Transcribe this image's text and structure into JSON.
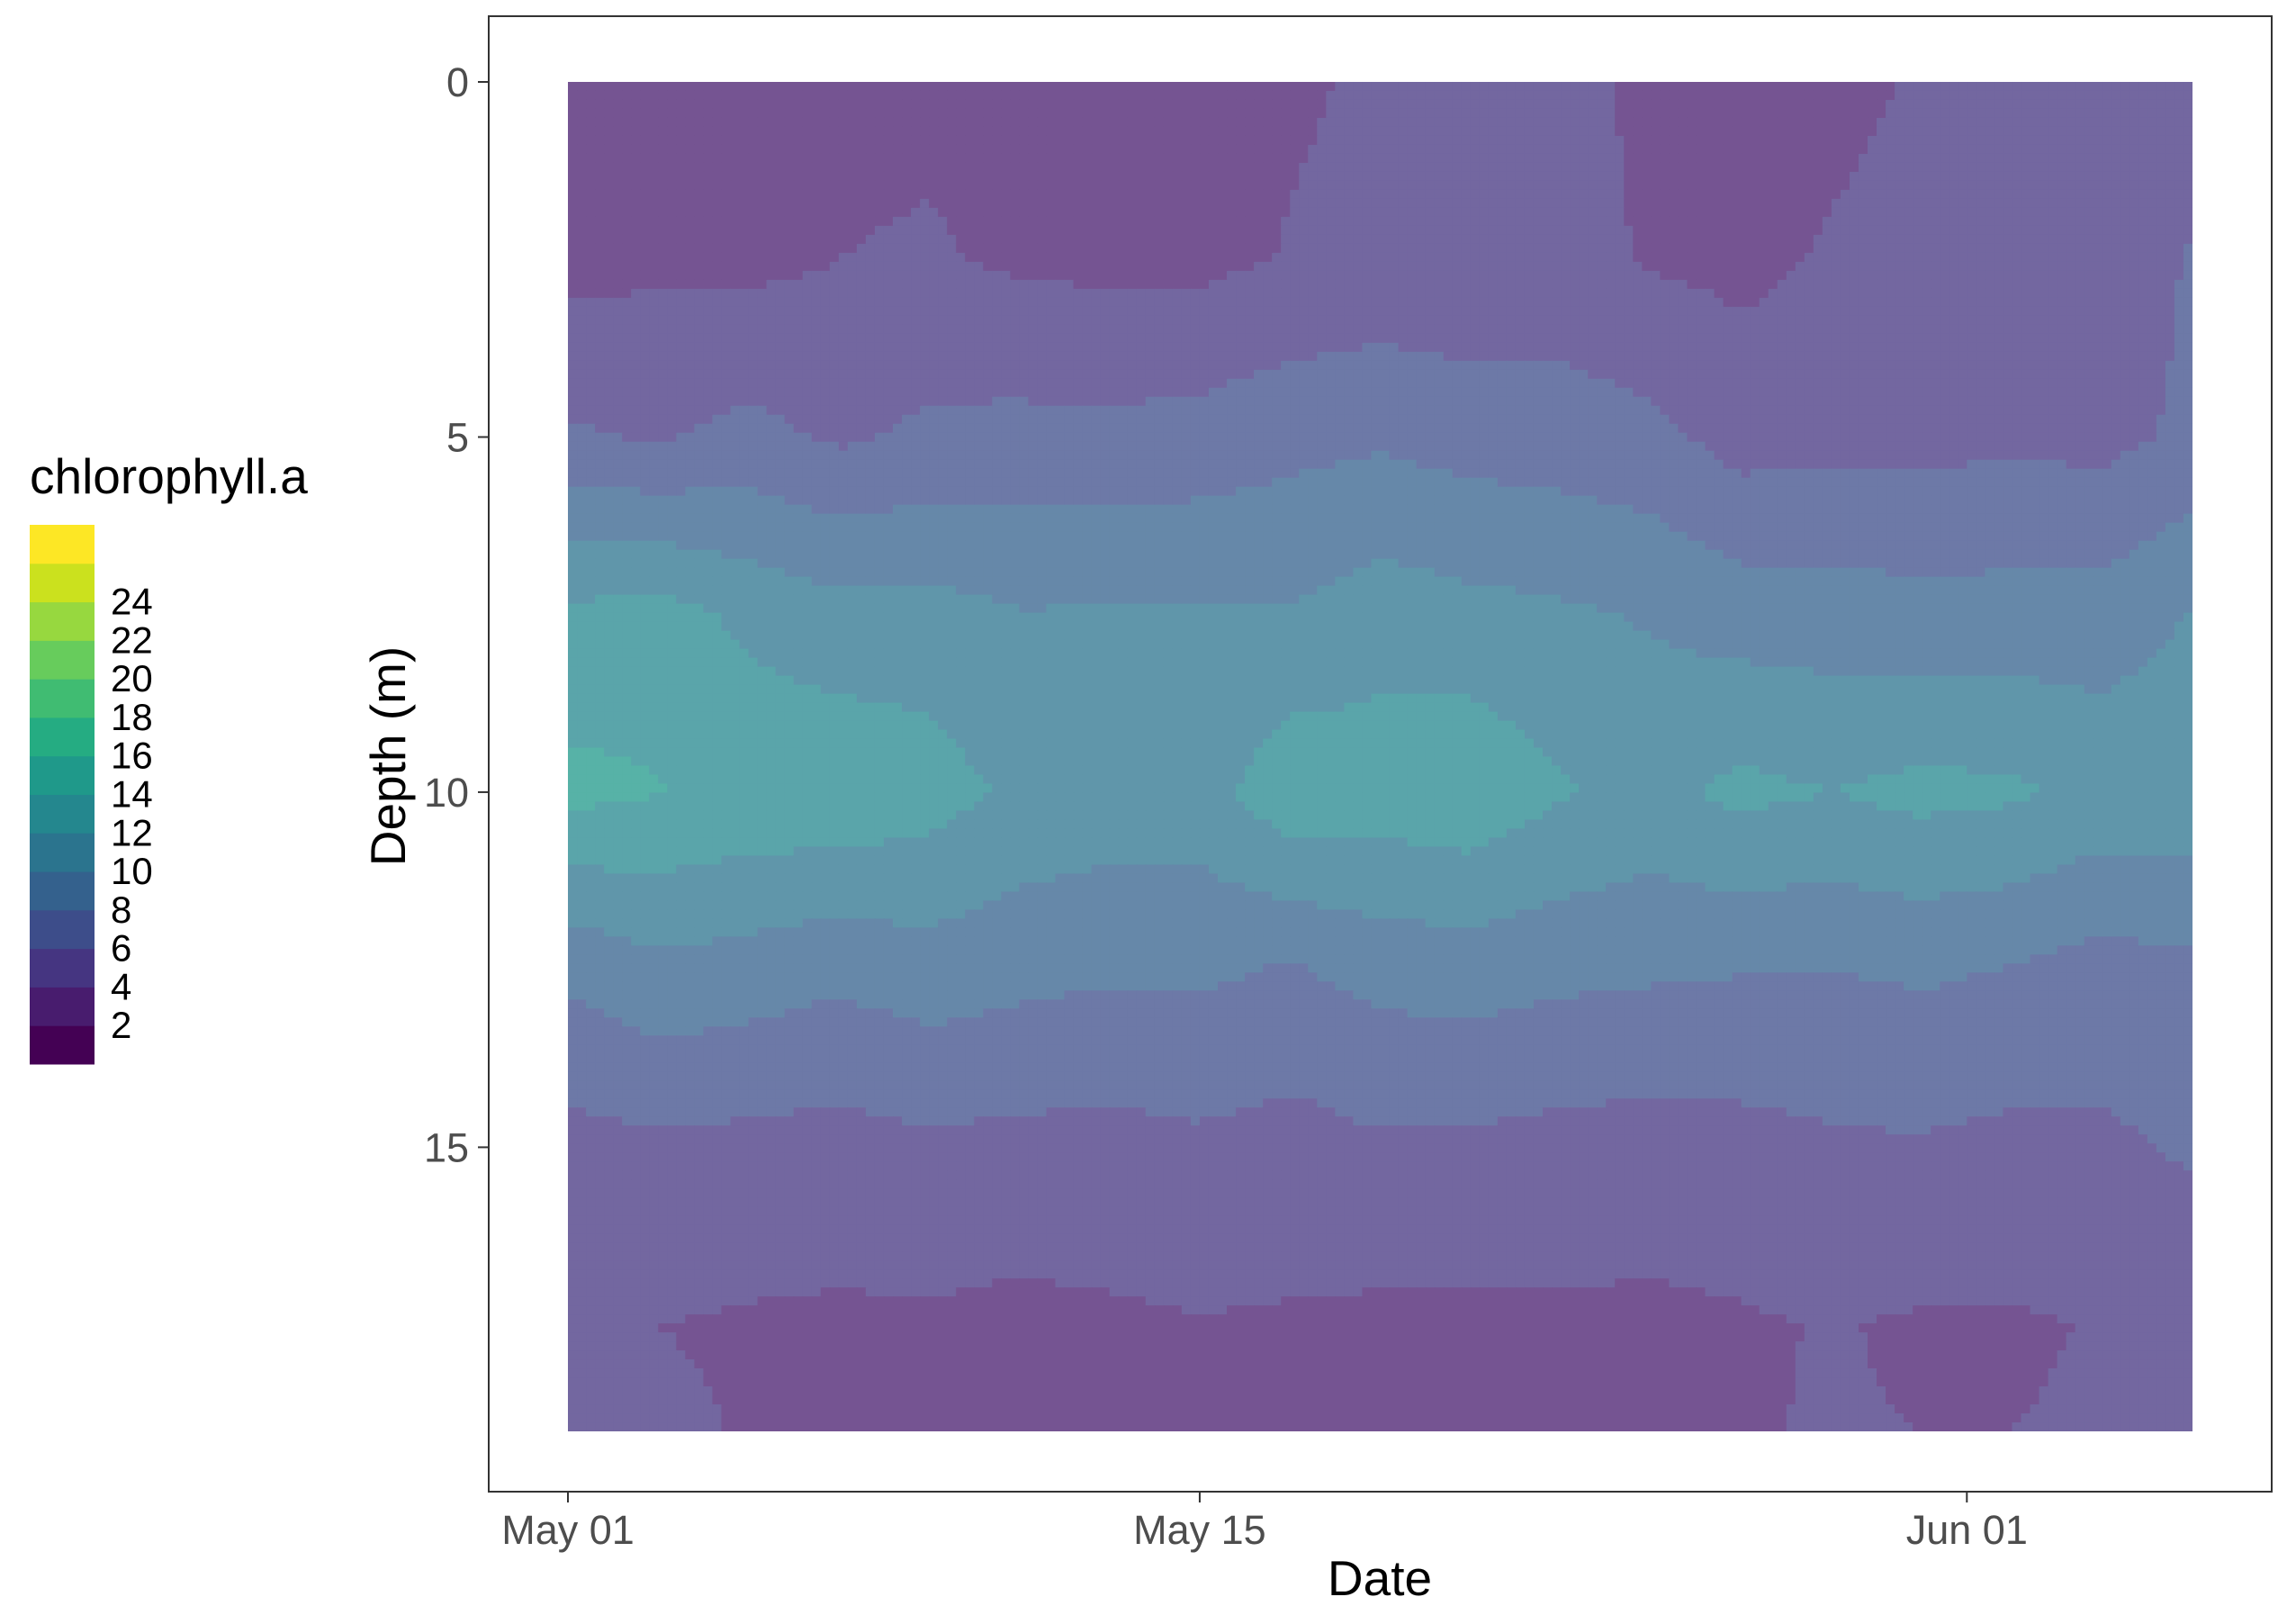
{
  "chart_data": {
    "type": "heatmap",
    "subtype": "filled-contour",
    "xlabel": "Date",
    "ylabel": "Depth (m)",
    "x_ticks": [
      "May 01",
      "May 15",
      "Jun 01"
    ],
    "x_ticks_day": [
      0,
      14,
      31
    ],
    "y_ticks": [
      "0",
      "5",
      "10",
      "15"
    ],
    "y_ticks_value": [
      0,
      5,
      10,
      15
    ],
    "xlim_dates": [
      "Apr 25",
      "Jun 01"
    ],
    "ylim": [
      19,
      0
    ],
    "y_reversed": true,
    "legend": {
      "title": "chlorophyll.a",
      "placement": "left",
      "labels": [
        "24",
        "22",
        "20",
        "18",
        "16",
        "14",
        "12",
        "10",
        "8",
        "6",
        "4",
        "2"
      ],
      "level_breaks": [
        0,
        2,
        4,
        6,
        8,
        10,
        12,
        14,
        16,
        18,
        20,
        22,
        24,
        26
      ],
      "palette": [
        "#440154",
        "#481c6e",
        "#453581",
        "#3d4d8a",
        "#34618d",
        "#2b748e",
        "#24878e",
        "#1f998a",
        "#25ac82",
        "#40bc72",
        "#67cc5c",
        "#97d83f",
        "#cbe11e",
        "#fde725"
      ]
    },
    "fill_alpha": 0.75,
    "grid": false,
    "depths": [
      0,
      2.5,
      5,
      7.5,
      10,
      12.5,
      15,
      17.5,
      19
    ],
    "days": [
      0,
      2,
      4,
      6,
      8,
      10,
      12,
      14,
      16,
      18,
      20,
      22,
      24,
      26,
      28,
      30,
      32,
      34,
      36
    ],
    "z": [
      [
        3.0,
        3.0,
        3.2,
        3.5,
        3.6,
        3.6,
        3.4,
        3.5,
        3.8,
        4.2,
        4.0,
        4.4,
        3.7,
        3.3,
        3.5,
        4.2,
        4.4,
        4.4,
        4.6
      ],
      [
        3.4,
        3.6,
        3.5,
        4.0,
        4.2,
        3.7,
        3.5,
        3.5,
        4.1,
        4.5,
        4.3,
        4.7,
        3.8,
        3.5,
        4.2,
        4.6,
        4.7,
        4.6,
        6.2
      ],
      [
        6.3,
        5.8,
        6.6,
        5.7,
        6.4,
        6.6,
        6.5,
        6.8,
        7.4,
        7.7,
        7.2,
        7.0,
        6.6,
        5.2,
        5.3,
        5.4,
        5.6,
        5.4,
        6.4
      ],
      [
        12.4,
        12.9,
        11.5,
        10.7,
        10.8,
        10.1,
        10.2,
        10.2,
        10.1,
        11.1,
        10.6,
        10.3,
        9.8,
        9.1,
        9.0,
        8.7,
        8.8,
        8.9,
        10.1
      ],
      [
        14.6,
        14.1,
        13.6,
        13.6,
        12.9,
        11.6,
        11.2,
        11.1,
        13.4,
        13.1,
        13.6,
        12.2,
        11.4,
        12.5,
        12.0,
        12.6,
        12.3,
        11.4,
        11.3
      ],
      [
        8.4,
        9.5,
        9.1,
        8.5,
        9.1,
        8.6,
        8.3,
        8.4,
        7.8,
        8.7,
        8.9,
        8.5,
        8.3,
        8.1,
        8.0,
        8.3,
        7.9,
        7.2,
        7.6
      ],
      [
        5.3,
        5.6,
        5.4,
        5.2,
        5.6,
        5.4,
        5.3,
        5.6,
        5.2,
        5.7,
        5.6,
        5.3,
        5.1,
        5.3,
        5.7,
        5.8,
        5.5,
        5.6,
        6.3
      ],
      [
        4.3,
        4.0,
        3.8,
        3.7,
        3.7,
        3.5,
        3.7,
        3.9,
        3.8,
        3.6,
        3.6,
        3.7,
        3.6,
        3.8,
        4.1,
        3.8,
        3.8,
        4.1,
        4.2
      ],
      [
        4.5,
        4.3,
        3.9,
        3.8,
        3.7,
        3.6,
        3.7,
        3.8,
        3.7,
        3.7,
        3.6,
        3.6,
        3.7,
        3.9,
        4.1,
        4.0,
        4.0,
        4.2,
        4.4
      ]
    ]
  }
}
